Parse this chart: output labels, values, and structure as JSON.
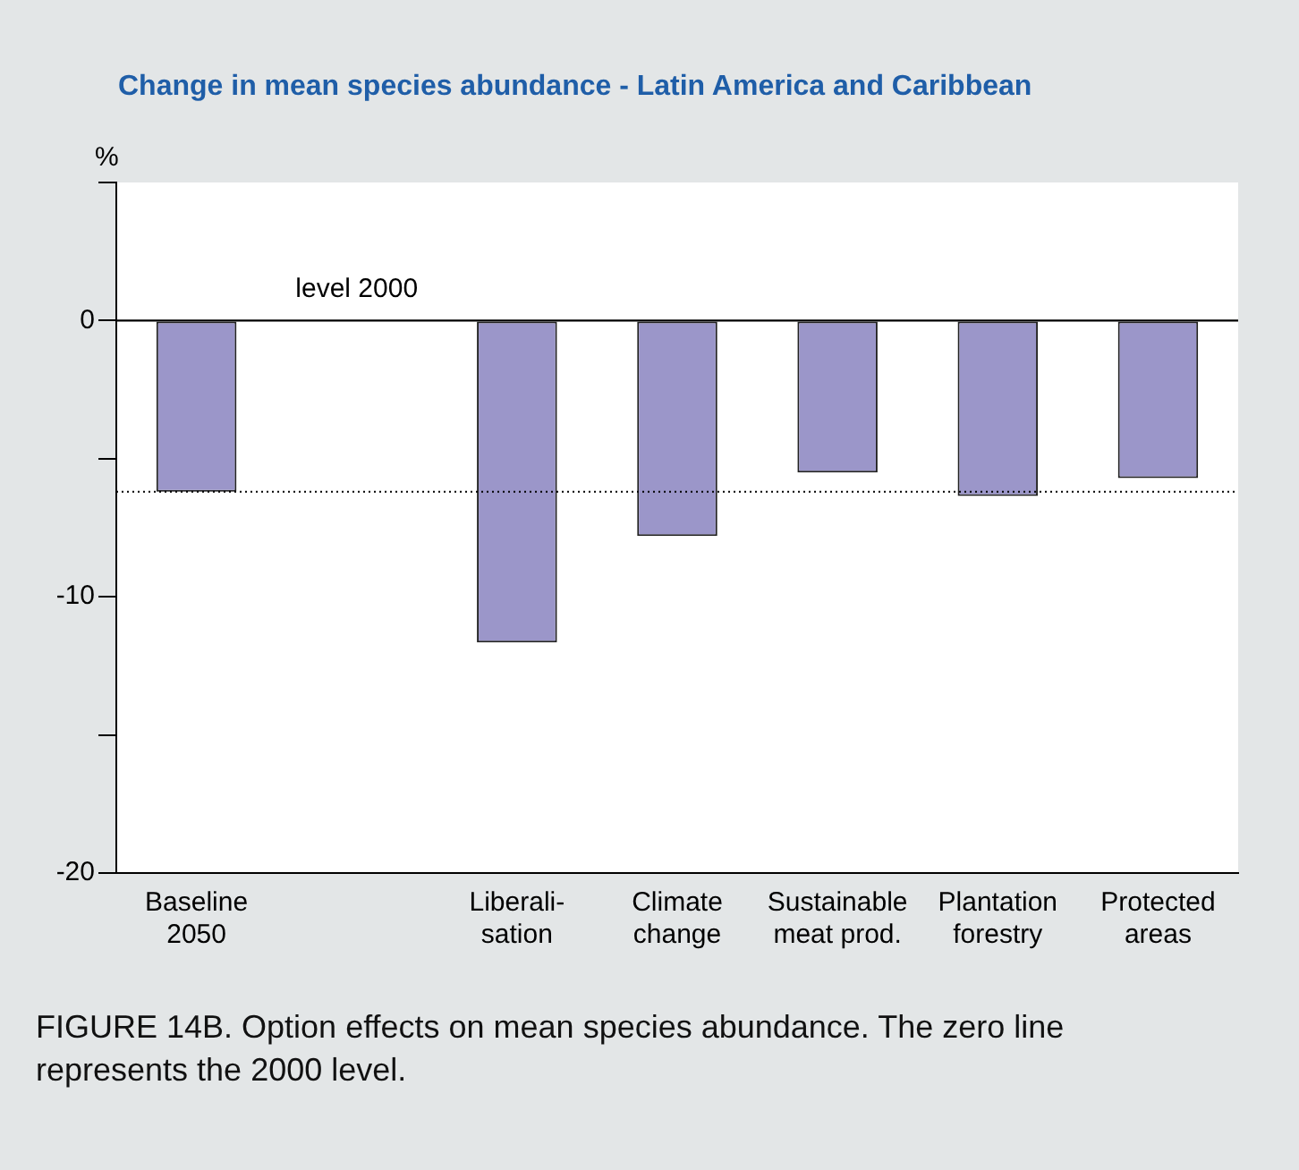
{
  "chart_data": {
    "type": "bar",
    "title": "Change in mean species abundance - Latin America and Caribbean",
    "ylabel": "%",
    "categories": [
      "Baseline\n2050",
      null,
      "Liberali-\nsation",
      "Climate\nchange",
      "Sustainable\nmeat prod.",
      "Plantation\nforestry",
      "Protected\nareas"
    ],
    "values": [
      -6.2,
      0,
      -11.65,
      -7.8,
      -5.5,
      -6.35,
      -5.7
    ],
    "color": "#9b96c9",
    "ylim": [
      -20,
      5
    ],
    "yticks": [
      {
        "value": 5,
        "label": null
      },
      0,
      {
        "value": -5,
        "label": null
      },
      -10,
      {
        "value": -15,
        "label": null
      },
      -20
    ],
    "grid": false,
    "legend": false,
    "ref_lines": [
      {
        "axis": "y",
        "value": 0,
        "color": "#000000",
        "line_style": "solid"
      },
      {
        "axis": "y",
        "value": -6.2,
        "color": "#000000",
        "line_style": "dotted"
      }
    ],
    "annotations": [
      {
        "text": "level 2000",
        "y": 0
      },
      "FIGURE 14B. Option effects on mean species abundance. The zero line represents the 2000 level."
    ]
  }
}
